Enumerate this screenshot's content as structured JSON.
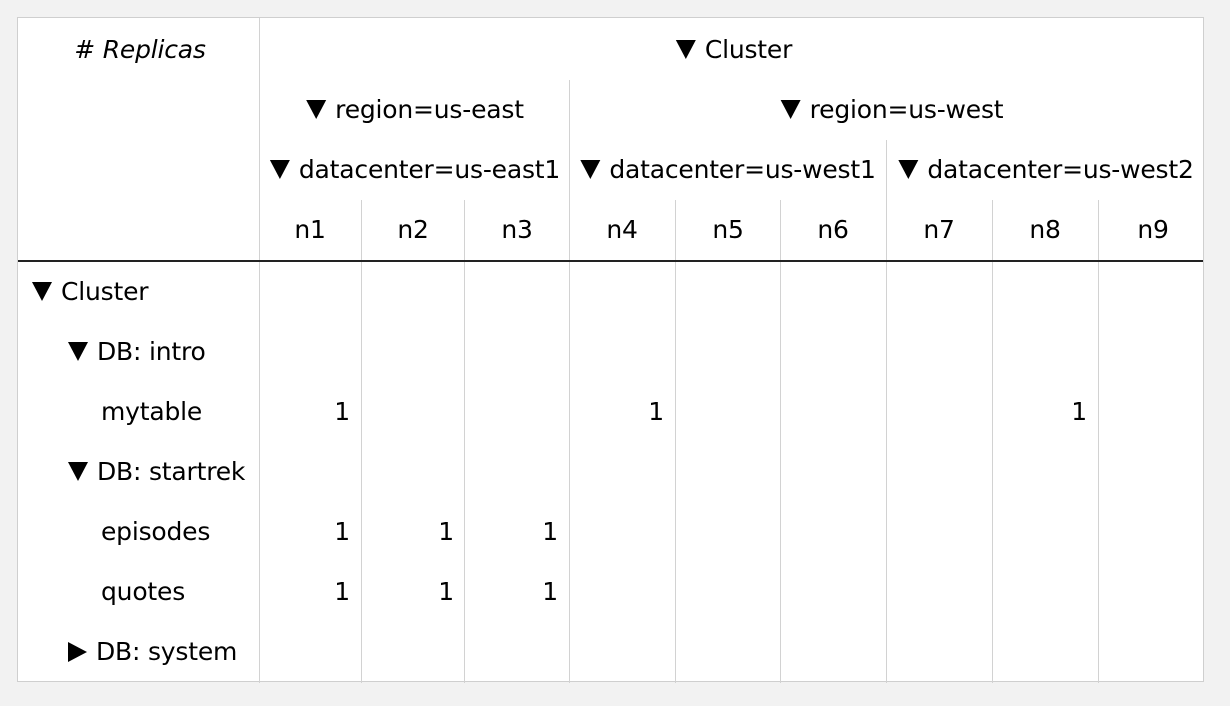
{
  "corner_label": "# Replicas",
  "columns": {
    "cluster": "Cluster",
    "regions": [
      "region=us-east",
      "region=us-west"
    ],
    "datacenters": [
      "datacenter=us-east1",
      "datacenter=us-west1",
      "datacenter=us-west2"
    ],
    "nodes": [
      "n1",
      "n2",
      "n3",
      "n4",
      "n5",
      "n6",
      "n7",
      "n8",
      "n9"
    ]
  },
  "rows": {
    "cluster": "Cluster",
    "db_intro": "DB: intro",
    "mytable": "mytable",
    "db_startrek": "DB: startrek",
    "episodes": "episodes",
    "quotes": "quotes",
    "db_system": "DB: system"
  },
  "values": {
    "mytable": [
      "1",
      "",
      "",
      "1",
      "",
      "",
      "",
      "1",
      ""
    ],
    "episodes": [
      "1",
      "1",
      "1",
      "",
      "",
      "",
      "",
      "",
      ""
    ],
    "quotes": [
      "1",
      "1",
      "1",
      "",
      "",
      "",
      "",
      "",
      ""
    ]
  },
  "icons": {
    "expanded": "triangle-down-icon",
    "collapsed": "triangle-right-icon"
  }
}
